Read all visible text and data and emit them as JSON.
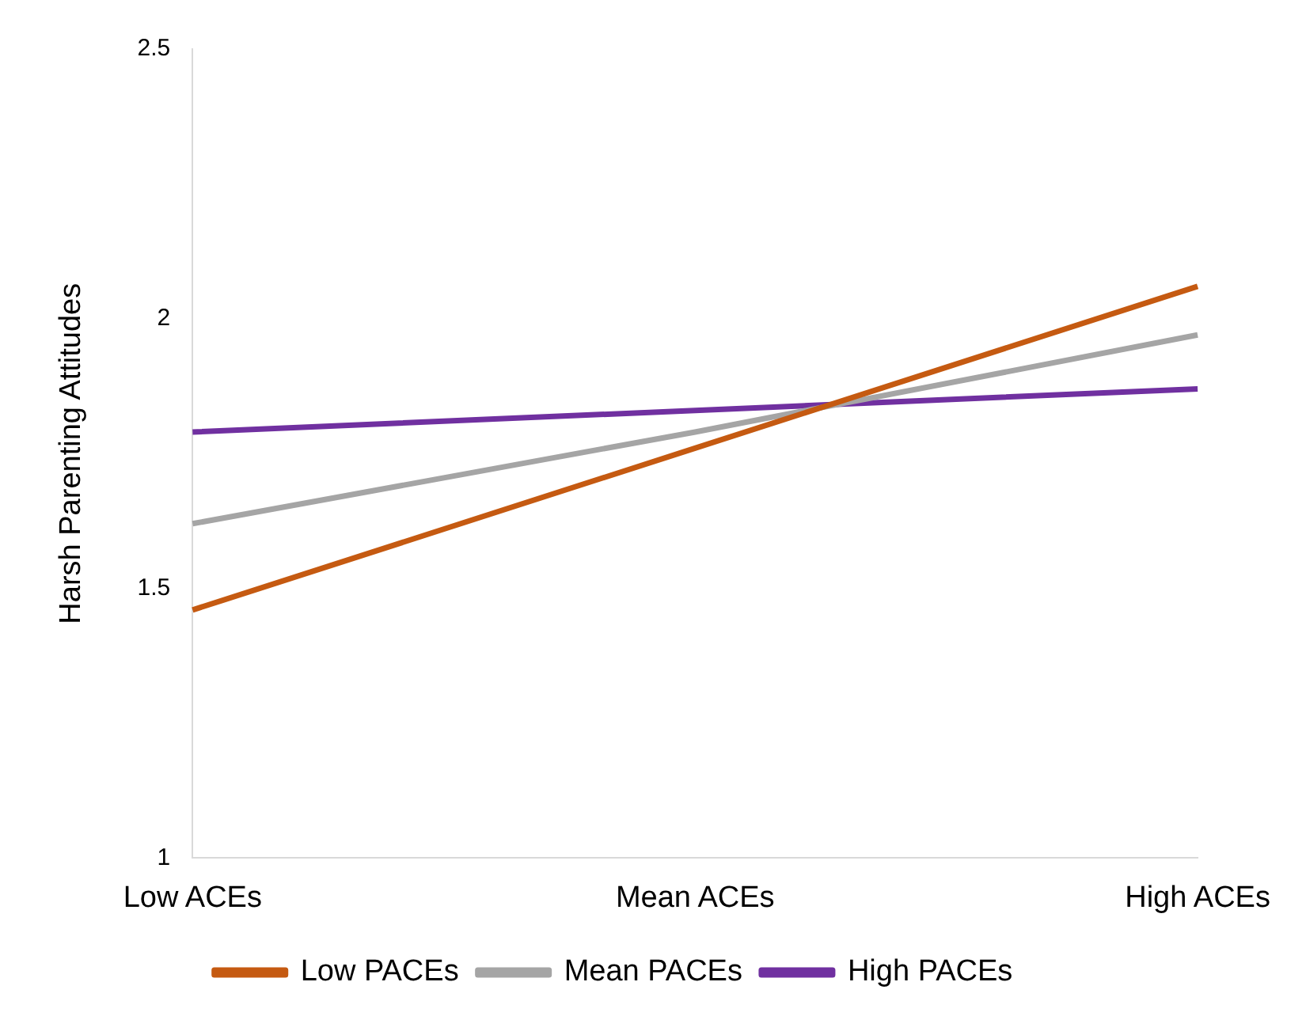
{
  "chart_data": {
    "type": "line",
    "ylabel": "Harsh Parenting Attitudes",
    "categories": [
      "Low ACEs",
      "Mean ACEs",
      "High ACEs"
    ],
    "series": [
      {
        "name": "Low PACEs",
        "color": "#c55a11",
        "values": [
          1.46,
          1.76,
          2.06
        ]
      },
      {
        "name": "Mean PACEs",
        "color": "#a5a5a5",
        "values": [
          1.62,
          1.79,
          1.97
        ]
      },
      {
        "name": "High PACEs",
        "color": "#7030a0",
        "values": [
          1.79,
          1.83,
          1.87
        ]
      }
    ],
    "ylim": [
      1,
      2.5
    ],
    "yticks": [
      1,
      1.5,
      2,
      2.5
    ],
    "grid": false,
    "legend": "bottom",
    "marker": "none",
    "line_style": "solid"
  }
}
